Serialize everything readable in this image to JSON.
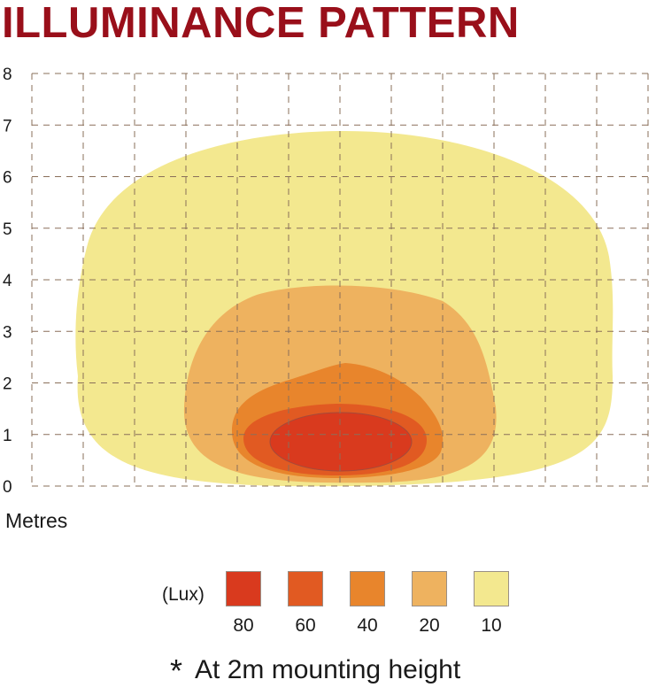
{
  "title": "ILLUMINANCE PATTERN",
  "chart_data": {
    "type": "contour",
    "title": "ILLUMINANCE PATTERN",
    "xlabel": "",
    "ylabel": "Metres",
    "ylim": [
      0,
      8
    ],
    "yticks": [
      "0",
      "1",
      "2",
      "3",
      "4",
      "5",
      "6",
      "7",
      "8"
    ],
    "x_columns": 12,
    "grid": true,
    "legend": {
      "unit": "(Lux)",
      "placement": "bottom",
      "items": [
        {
          "label": "80",
          "value": 80,
          "color": "#d93a1e"
        },
        {
          "label": "60",
          "value": 60,
          "color": "#e15a22"
        },
        {
          "label": "40",
          "value": 40,
          "color": "#e8852c"
        },
        {
          "label": "20",
          "value": 20,
          "color": "#eeb25f"
        },
        {
          "label": "10",
          "value": 10,
          "color": "#f3e88f"
        }
      ]
    },
    "contours": [
      {
        "lux": 10,
        "max_height_m": 6.85,
        "color": "#f3e88f"
      },
      {
        "lux": 20,
        "max_height_m": 3.9,
        "color": "#eeb25f"
      },
      {
        "lux": 40,
        "max_height_m": 2.35,
        "color": "#e8852c"
      },
      {
        "lux": 60,
        "max_height_m": 1.55,
        "color": "#e15a22"
      },
      {
        "lux": 80,
        "max_height_m": 1.4,
        "color": "#d93a1e"
      }
    ],
    "footnote": "At 2m mounting height"
  },
  "footnote": {
    "star": "*",
    "text": "At 2m mounting height"
  }
}
